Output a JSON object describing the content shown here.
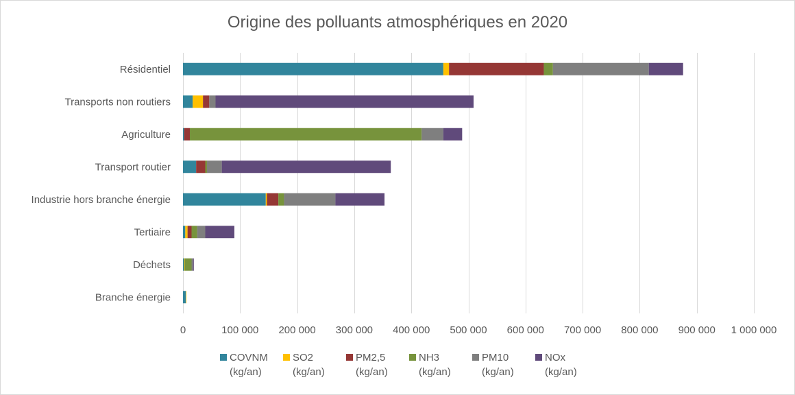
{
  "chart_data": {
    "type": "bar",
    "orientation": "horizontal",
    "stacked": true,
    "title": "Origine des polluants atmosphériques  en 2020",
    "categories": [
      "Résidentiel",
      "Transports non routiers",
      "Agriculture",
      "Transport routier",
      "Industrie hors branche énergie",
      "Tertiaire",
      "Déchets",
      "Branche énergie"
    ],
    "series": [
      {
        "name": "COVNM (kg/an)",
        "line1": "COVNM",
        "line2": "(kg/an)",
        "color": "#31859C",
        "values": [
          456000,
          17000,
          2000,
          23000,
          145000,
          4000,
          2000,
          5000
        ]
      },
      {
        "name": "SO2 (kg/an)",
        "line1": "SO2",
        "line2": "(kg/an)",
        "color": "#FFC000",
        "values": [
          10000,
          18000,
          0,
          0,
          2000,
          4000,
          1000,
          1000
        ]
      },
      {
        "name": "PM2,5 (kg/an)",
        "line1": "PM2,5",
        "line2": "(kg/an)",
        "color": "#953735",
        "values": [
          166000,
          11000,
          10000,
          16000,
          20000,
          7000,
          0,
          0
        ]
      },
      {
        "name": "NH3 (kg/an)",
        "line1": "NH3",
        "line2": "(kg/an)",
        "color": "#77933C",
        "values": [
          16000,
          0,
          406000,
          3000,
          10000,
          10000,
          12000,
          0
        ]
      },
      {
        "name": "PM10 (kg/an)",
        "line1": "PM10",
        "line2": "(kg/an)",
        "color": "#7F7F7F",
        "values": [
          168000,
          11000,
          38000,
          26000,
          90000,
          14000,
          3000,
          0
        ]
      },
      {
        "name": "NOx (kg/an)",
        "line1": "NOx",
        "line2": "(kg/an)",
        "color": "#604A7B",
        "values": [
          60000,
          452000,
          33000,
          296000,
          86000,
          51000,
          1000,
          0
        ]
      }
    ],
    "xlim": [
      0,
      1000000
    ],
    "xticks": [
      0,
      100000,
      200000,
      300000,
      400000,
      500000,
      600000,
      700000,
      800000,
      900000,
      1000000
    ],
    "xtick_labels": [
      "0",
      "100 000",
      "200 000",
      "300 000",
      "400 000",
      "500 000",
      "600 000",
      "700 000",
      "800 000",
      "900 000",
      "1 000 000"
    ],
    "grid": "vertical",
    "legend_position": "bottom"
  }
}
